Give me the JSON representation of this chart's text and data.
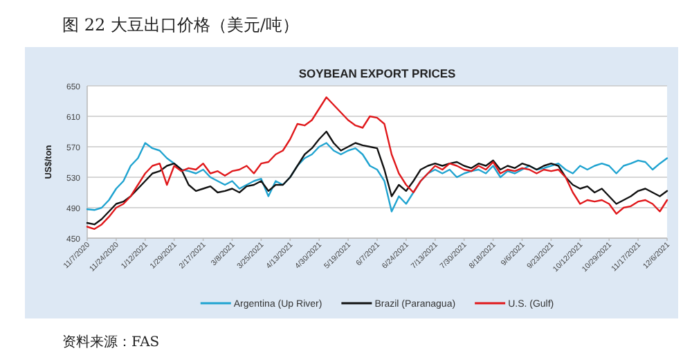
{
  "chart_data": {
    "type": "line",
    "title": "图 22 大豆出口价格（美元/吨）",
    "subtitle": "SOYBEAN EXPORT PRICES",
    "ylabel": "US$/ton",
    "annotations": [
      "资料来源：FAS"
    ],
    "categories": [
      "11/7/2020",
      null,
      null,
      null,
      "11/24/2020",
      null,
      null,
      null,
      "1/12/2021",
      null,
      null,
      null,
      "1/29/2021",
      null,
      null,
      null,
      "2/17/2021",
      null,
      null,
      null,
      "3/8/2021",
      null,
      null,
      null,
      "3/25/2021",
      null,
      null,
      null,
      "4/13/2021",
      null,
      null,
      null,
      "4/30/2021",
      null,
      null,
      null,
      "5/19/2021",
      null,
      null,
      null,
      "6/7/2021",
      null,
      null,
      null,
      "6/24/2021",
      null,
      null,
      null,
      "7/13/2021",
      null,
      null,
      null,
      "7/30/2021",
      null,
      null,
      null,
      "8/18/2021",
      null,
      null,
      null,
      "9/6/2021",
      null,
      null,
      null,
      "9/23/2021",
      null,
      null,
      null,
      "10/12/2021",
      null,
      null,
      null,
      "10/29/2021",
      null,
      null,
      null,
      "11/17/2021",
      null,
      null,
      null,
      "12/6/2021"
    ],
    "ylim": [
      450,
      650
    ],
    "yticks": [
      450,
      490,
      530,
      570,
      610,
      650
    ],
    "grid": "y",
    "legend": "bottom",
    "marker": "none",
    "line_style": "solid",
    "series": [
      {
        "name": "Argentina (Up River)",
        "color": "#1fa3d0",
        "values": [
          488,
          487,
          490,
          500,
          515,
          525,
          545,
          555,
          575,
          568,
          565,
          555,
          548,
          540,
          538,
          535,
          540,
          530,
          525,
          520,
          525,
          515,
          520,
          525,
          528,
          505,
          525,
          520,
          530,
          545,
          555,
          560,
          570,
          575,
          565,
          560,
          565,
          568,
          560,
          545,
          540,
          525,
          485,
          505,
          495,
          510,
          525,
          535,
          540,
          535,
          540,
          530,
          535,
          538,
          540,
          535,
          545,
          530,
          538,
          535,
          540,
          545,
          540,
          542,
          545,
          548,
          540,
          535,
          545,
          540,
          545,
          548,
          545,
          535,
          545,
          548,
          552,
          550,
          540,
          548,
          555
        ]
      },
      {
        "name": "Brazil (Paranagua)",
        "color": "#111111",
        "values": [
          470,
          468,
          475,
          485,
          495,
          498,
          505,
          515,
          525,
          535,
          538,
          545,
          548,
          540,
          520,
          512,
          515,
          518,
          510,
          512,
          515,
          510,
          518,
          520,
          525,
          512,
          520,
          520,
          530,
          545,
          560,
          568,
          580,
          590,
          575,
          565,
          570,
          575,
          572,
          570,
          568,
          540,
          505,
          520,
          512,
          525,
          540,
          545,
          548,
          545,
          548,
          550,
          545,
          542,
          548,
          545,
          552,
          540,
          545,
          542,
          548,
          545,
          540,
          545,
          548,
          545,
          530,
          520,
          515,
          518,
          510,
          515,
          505,
          495,
          500,
          505,
          512,
          515,
          510,
          505,
          512
        ]
      },
      {
        "name": "U.S. (Gulf)",
        "color": "#e0181b",
        "values": [
          465,
          462,
          468,
          478,
          490,
          495,
          505,
          520,
          535,
          545,
          548,
          520,
          545,
          538,
          542,
          540,
          548,
          535,
          538,
          532,
          538,
          540,
          545,
          535,
          548,
          550,
          560,
          565,
          580,
          600,
          598,
          605,
          620,
          635,
          625,
          615,
          605,
          598,
          595,
          610,
          608,
          600,
          560,
          535,
          520,
          510,
          525,
          535,
          545,
          540,
          548,
          545,
          540,
          538,
          545,
          540,
          550,
          535,
          540,
          538,
          542,
          540,
          535,
          540,
          538,
          540,
          530,
          510,
          495,
          500,
          498,
          500,
          495,
          482,
          490,
          492,
          498,
          500,
          495,
          485,
          500
        ]
      }
    ]
  }
}
